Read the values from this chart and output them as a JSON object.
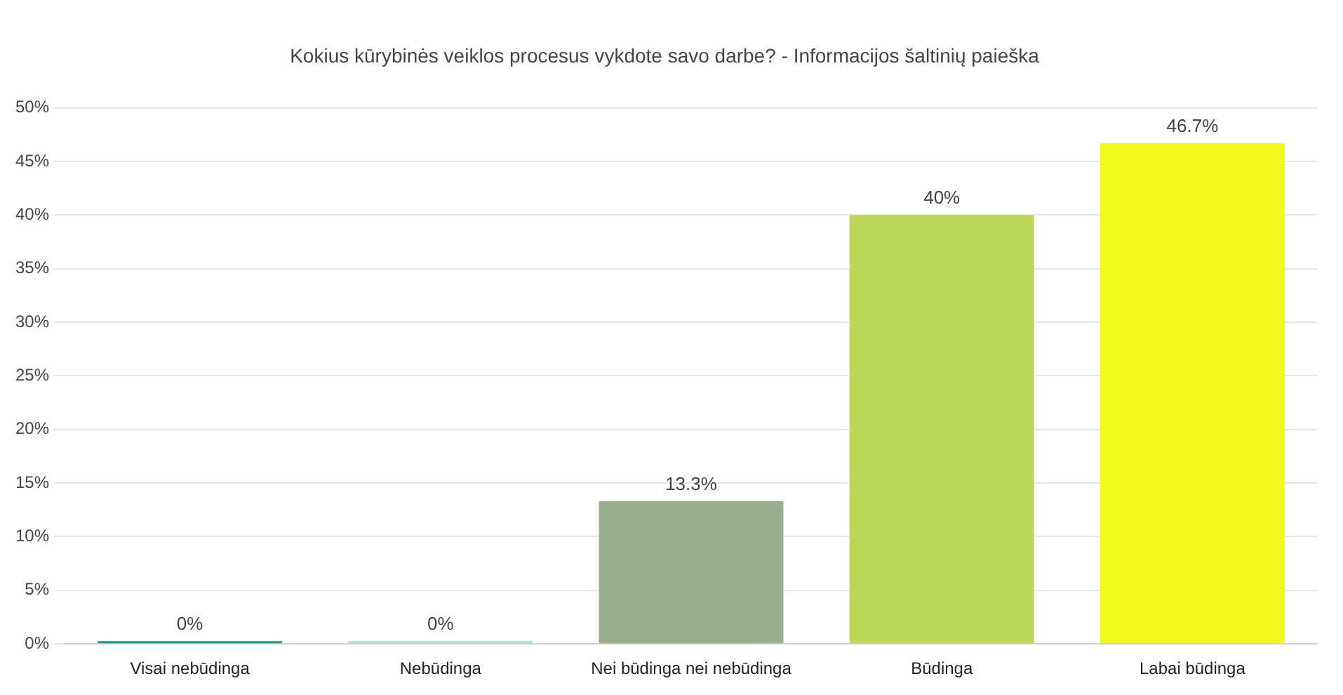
{
  "chart_data": {
    "type": "bar",
    "title": "Kokius kūrybinės veiklos procesus vykdote savo darbe? - Informacijos šaltinių paieška",
    "categories": [
      "Visai nebūdinga",
      "Nebūdinga",
      "Nei būdinga nei nebūdinga",
      "Būdinga",
      "Labai būdinga"
    ],
    "values": [
      0,
      0,
      13.3,
      40,
      46.7
    ],
    "colors": [
      "#1a9a86",
      "#a6e3bd",
      "#98ae8c",
      "#bcd65a",
      "#f2f91a"
    ],
    "value_labels": [
      "0%",
      "0%",
      "13.3%",
      "40%",
      "46.7%"
    ],
    "ylim": [
      0,
      50
    ],
    "yticks": [
      {
        "value": 0,
        "label": "0%"
      },
      {
        "value": 5,
        "label": "5%"
      },
      {
        "value": 10,
        "label": "10%"
      },
      {
        "value": 15,
        "label": "15%"
      },
      {
        "value": 20,
        "label": "20%"
      },
      {
        "value": 25,
        "label": "25%"
      },
      {
        "value": 30,
        "label": "30%"
      },
      {
        "value": 35,
        "label": "35%"
      },
      {
        "value": 40,
        "label": "40%"
      },
      {
        "value": 45,
        "label": "45%"
      },
      {
        "value": 50,
        "label": "50%"
      }
    ],
    "grid": "y",
    "legend": false
  }
}
